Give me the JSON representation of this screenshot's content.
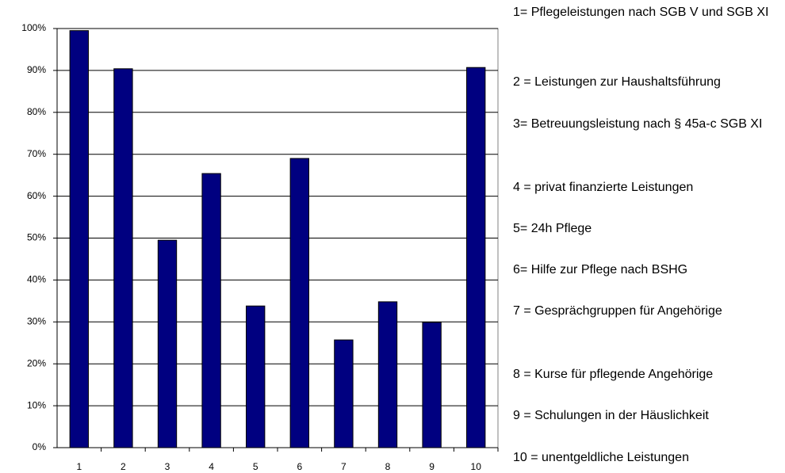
{
  "chart_data": {
    "type": "bar",
    "categories": [
      "1",
      "2",
      "3",
      "4",
      "5",
      "6",
      "7",
      "8",
      "9",
      "10"
    ],
    "values": [
      99.5,
      90.4,
      49.5,
      65.4,
      33.8,
      69,
      25.7,
      34.8,
      29.9,
      90.7
    ],
    "color": "#000080",
    "ylim": [
      0,
      100
    ],
    "yticks": [
      {
        "value": 0,
        "label": "0%"
      },
      {
        "value": 10,
        "label": "10%"
      },
      {
        "value": 20,
        "label": "20%"
      },
      {
        "value": 30,
        "label": "30%"
      },
      {
        "value": 40,
        "label": "40%"
      },
      {
        "value": 50,
        "label": "50%"
      },
      {
        "value": 60,
        "label": "60%"
      },
      {
        "value": 70,
        "label": "70%"
      },
      {
        "value": 80,
        "label": "80%"
      },
      {
        "value": 90,
        "label": "90%"
      },
      {
        "value": 100,
        "label": "100%"
      }
    ],
    "grid": true,
    "annotations": [
      "1= Pflegeleistungen nach SGB V und SGB XI",
      "2 = Leistungen zur Haushaltsführung",
      "3= Betreuungsleistung nach § 45a-c SGB XI",
      "4 = privat finanzierte Leistungen",
      "5= 24h Pflege",
      "6= Hilfe zur Pflege nach BSHG",
      "7 = Gesprächgruppen für Angehörige",
      "8 = Kurse für pflegende Angehörige",
      "9 = Schulungen in der Häuslichkeit",
      "10 = unentgeldliche Leistungen"
    ]
  }
}
